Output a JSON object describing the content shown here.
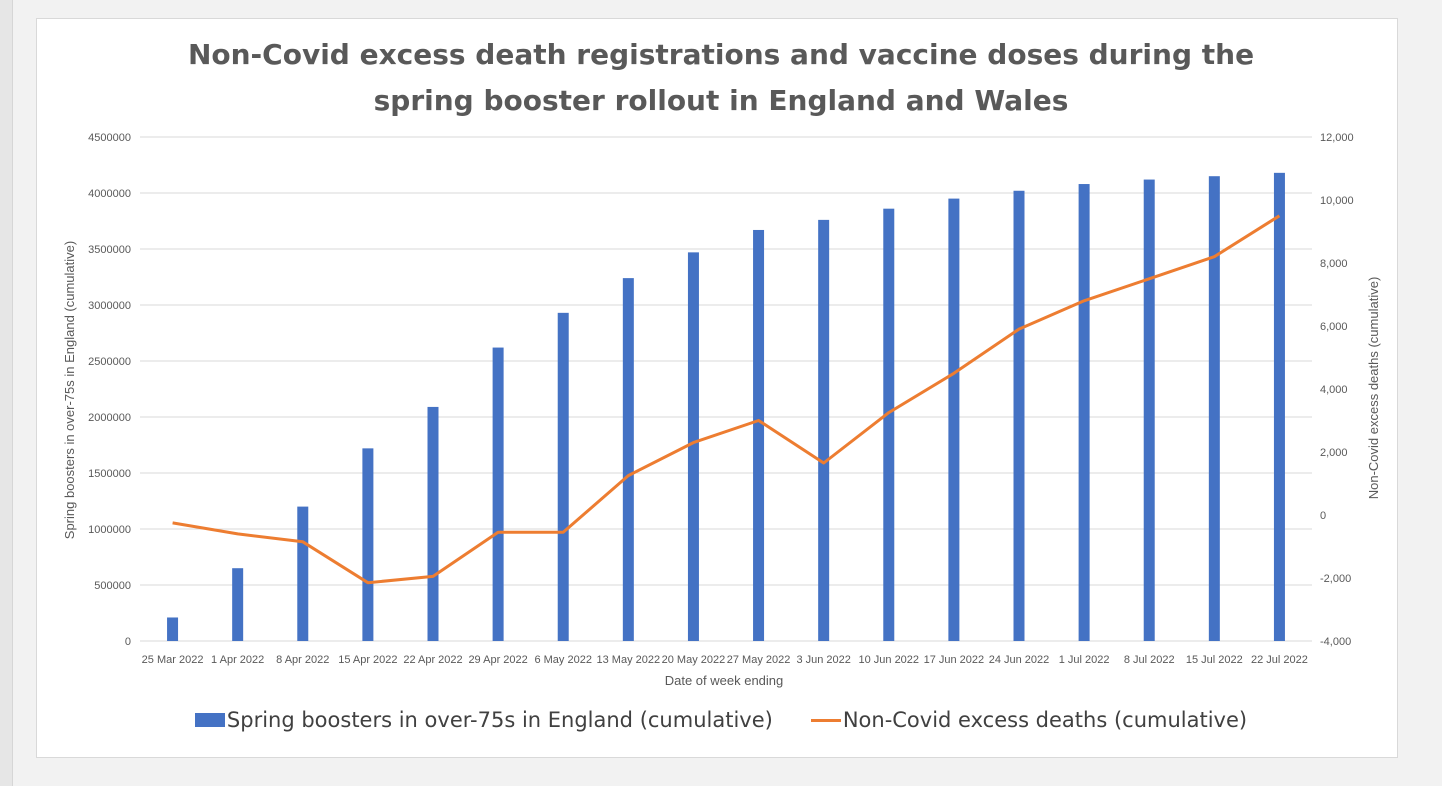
{
  "chart_data": {
    "type": "bar",
    "title_lines": [
      "Non-Covid excess death registrations and vaccine doses during the",
      "spring booster rollout in England and Wales"
    ],
    "xlabel": "Date of week ending",
    "ylabel_left": "Spring boosters in over-75s in England (cumulative)",
    "ylabel_right": "Non-Covid excess deaths (cumulative)",
    "categories": [
      "25 Mar 2022",
      "1 Apr 2022",
      "8 Apr 2022",
      "15 Apr 2022",
      "22 Apr 2022",
      "29 Apr 2022",
      "6 May 2022",
      "13 May 2022",
      "20 May 2022",
      "27 May 2022",
      "3 Jun 2022",
      "10 Jun 2022",
      "17 Jun 2022",
      "24 Jun 2022",
      "1 Jul 2022",
      "8 Jul 2022",
      "15 Jul 2022",
      "22 Jul 2022"
    ],
    "ylim_left": [
      0,
      4500000
    ],
    "yticks_left": [
      "0",
      "500000",
      "1000000",
      "1500000",
      "2000000",
      "2500000",
      "3000000",
      "3500000",
      "4000000",
      "4500000"
    ],
    "ylim_right": [
      -4000,
      12000
    ],
    "yticks_right": [
      "-4,000",
      "-2,000",
      "0",
      "2,000",
      "4,000",
      "6,000",
      "8,000",
      "10,000",
      "12,000"
    ],
    "grid": true,
    "legend_position": "bottom",
    "series": [
      {
        "name": "Spring boosters in over-75s in England (cumulative)",
        "type": "bar",
        "axis": "left",
        "color": "#4472c4",
        "values": [
          210000,
          650000,
          1200000,
          1720000,
          2090000,
          2620000,
          2930000,
          3240000,
          3470000,
          3670000,
          3760000,
          3860000,
          3950000,
          4020000,
          4080000,
          4120000,
          4150000,
          4180000
        ]
      },
      {
        "name": "Non-Covid excess deaths (cumulative)",
        "type": "line",
        "axis": "right",
        "color": "#ed7d31",
        "values": [
          -250,
          -600,
          -850,
          -2150,
          -1950,
          -550,
          -550,
          1250,
          2300,
          3000,
          1650,
          3250,
          4500,
          5900,
          6800,
          7500,
          8200,
          9500
        ]
      }
    ]
  }
}
